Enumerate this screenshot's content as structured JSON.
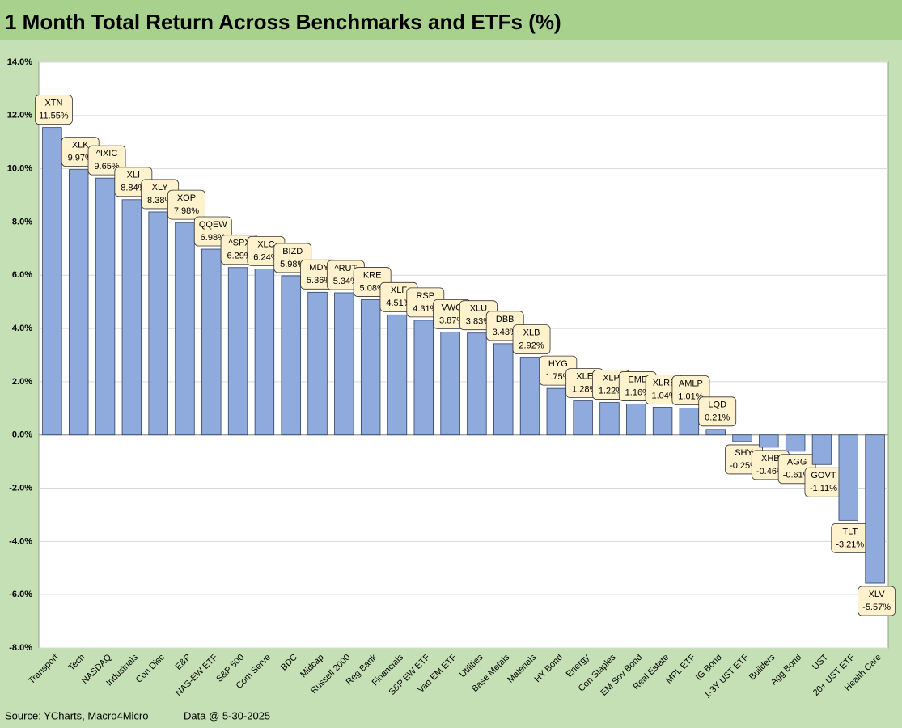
{
  "chart_data": {
    "type": "bar",
    "title": "1 Month Total Return Across Benchmarks and ETFs (%)",
    "source": "Source: YCharts, Macro4Micro",
    "note": "Data @ 5-30-2025",
    "categories": [
      "Transport",
      "Tech",
      "NASDAQ",
      "Industrials",
      "Con Disc",
      "E&P",
      "NAS-EW ETF",
      "S&P 500",
      "Com Serve",
      "BDC",
      "Midcap",
      "Russell 2000",
      "Reg Bank",
      "Financials",
      "S&P EW ETF",
      "Van EM ETF",
      "Utilities",
      "Base Metals",
      "Materials",
      "HY Bond",
      "Energy",
      "Con Staples",
      "EM Sov Bond",
      "Real Estate",
      "MPL ETF",
      "IG Bond",
      "1-3Y UST ETF",
      "Builders",
      "Agg Bond",
      "UST",
      "20+ UST ETF",
      "Health Care"
    ],
    "tickers": [
      "XTN",
      "XLK",
      "^IXIC",
      "XLI",
      "XLY",
      "XOP",
      "QQEW",
      "^SPX",
      "XLC",
      "BIZD",
      "MDY",
      "^RUT",
      "KRE",
      "XLF",
      "RSP",
      "VWO",
      "XLU",
      "DBB",
      "XLB",
      "HYG",
      "XLE",
      "XLP",
      "EMB",
      "XLRE",
      "AMLP",
      "LQD",
      "SHY",
      "XHB",
      "AGG",
      "GOVT",
      "TLT",
      "XLV"
    ],
    "values": [
      11.55,
      9.97,
      9.65,
      8.84,
      8.38,
      7.98,
      6.98,
      6.29,
      6.24,
      5.98,
      5.36,
      5.34,
      5.08,
      4.51,
      4.31,
      3.87,
      3.83,
      3.43,
      2.92,
      1.75,
      1.28,
      1.22,
      1.16,
      1.04,
      1.01,
      0.21,
      -0.25,
      -0.46,
      -0.61,
      -1.11,
      -3.21,
      -5.57
    ],
    "value_labels": [
      "11.55%",
      "9.97%",
      "9.65%",
      "8.84%",
      "8.38%",
      "7.98%",
      "6.98%",
      "6.29%",
      "6.24%",
      "5.98%",
      "5.36%",
      "5.34%",
      "5.08%",
      "4.51%",
      "4.31%",
      "3.87%",
      "3.83%",
      "3.43%",
      "2.92%",
      "1.75%",
      "1.28%",
      "1.22%",
      "1.16%",
      "1.04%",
      "1.01%",
      "0.21%",
      "-0.25%",
      "-0.46%",
      "-0.61%",
      "-1.11%",
      "-3.21%",
      "-5.57%"
    ],
    "color": "#8faadc",
    "ylim": [
      -8,
      14
    ],
    "yticks": [
      {
        "value": -8,
        "label": "-8.0%"
      },
      {
        "value": -6,
        "label": "-6.0%"
      },
      {
        "value": -4,
        "label": "-4.0%"
      },
      {
        "value": -2,
        "label": "-2.0%"
      },
      {
        "value": 0,
        "label": "0.0%"
      },
      {
        "value": 2,
        "label": "2.0%"
      },
      {
        "value": 4,
        "label": "4.0%"
      },
      {
        "value": 6,
        "label": "6.0%"
      },
      {
        "value": 8,
        "label": "8.0%"
      },
      {
        "value": 10,
        "label": "10.0%"
      },
      {
        "value": 12,
        "label": "12.0%"
      },
      {
        "value": 14,
        "label": "14.0%"
      }
    ],
    "grid": true
  }
}
